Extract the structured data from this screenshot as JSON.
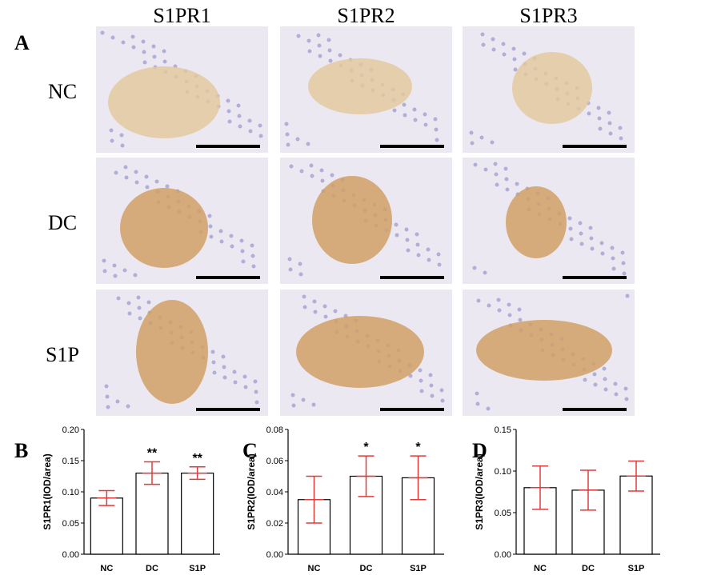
{
  "figure": {
    "panel_label": "A",
    "columns": [
      "S1PR1",
      "S1PR2",
      "S1PR3"
    ],
    "rows": [
      "NC",
      "DC",
      "S1P"
    ]
  },
  "chart_data": [
    {
      "type": "bar",
      "panel_label": "B",
      "y_label": "S1PR1(IOD/area)",
      "categories": [
        "NC",
        "DC",
        "S1P"
      ],
      "values": [
        0.09,
        0.13,
        0.13
      ],
      "errors": [
        0.012,
        0.018,
        0.01
      ],
      "annotations": [
        null,
        "**",
        "**"
      ],
      "ylim": [
        0,
        0.2
      ],
      "yticks": [
        {
          "value": 0,
          "label": "0.00"
        },
        {
          "value": 0.05,
          "label": "0.05"
        },
        {
          "value": 0.1,
          "label": "0.10"
        },
        {
          "value": 0.15,
          "label": "0.15"
        },
        {
          "value": 0.2,
          "label": "0.20"
        }
      ],
      "bar_color": "#ffffff",
      "edge_color": "#000000",
      "error_color": "#e03a3a"
    },
    {
      "type": "bar",
      "panel_label": "C",
      "y_label": "S1PR2(IOD/area)",
      "categories": [
        "NC",
        "DC",
        "S1P"
      ],
      "values": [
        0.035,
        0.05,
        0.049
      ],
      "errors": [
        0.015,
        0.013,
        0.014
      ],
      "annotations": [
        null,
        "*",
        "*"
      ],
      "ylim": [
        0,
        0.08
      ],
      "yticks": [
        {
          "value": 0,
          "label": "0.00"
        },
        {
          "value": 0.02,
          "label": "0.02"
        },
        {
          "value": 0.04,
          "label": "0.04"
        },
        {
          "value": 0.06,
          "label": "0.06"
        },
        {
          "value": 0.08,
          "label": "0.08"
        }
      ],
      "bar_color": "#ffffff",
      "edge_color": "#000000",
      "error_color": "#e03a3a"
    },
    {
      "type": "bar",
      "panel_label": "D",
      "y_label": "S1PR3(IOD/area)",
      "categories": [
        "NC",
        "DC",
        "S1P"
      ],
      "values": [
        0.08,
        0.077,
        0.094
      ],
      "errors": [
        0.026,
        0.024,
        0.018
      ],
      "annotations": [
        null,
        null,
        null
      ],
      "ylim": [
        0,
        0.15
      ],
      "yticks": [
        {
          "value": 0,
          "label": "0.00"
        },
        {
          "value": 0.05,
          "label": "0.05"
        },
        {
          "value": 0.1,
          "label": "0.10"
        },
        {
          "value": 0.15,
          "label": "0.15"
        }
      ],
      "bar_color": "#ffffff",
      "edge_color": "#000000",
      "error_color": "#e03a3a"
    }
  ]
}
